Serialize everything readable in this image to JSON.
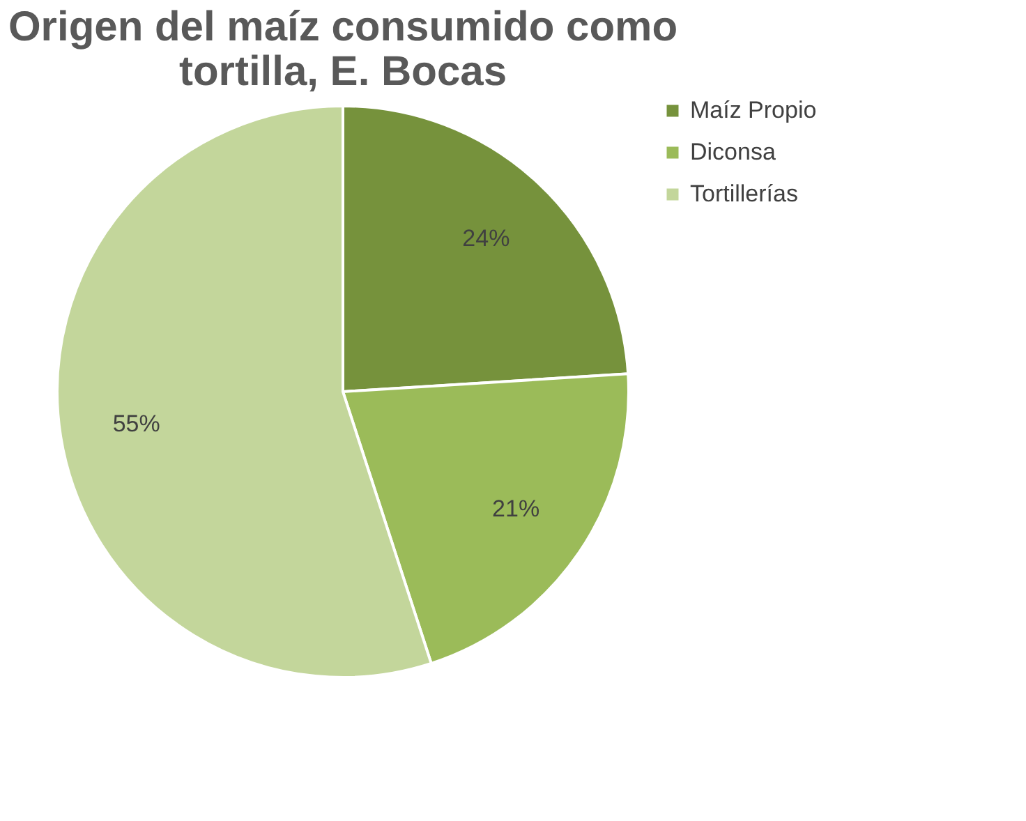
{
  "chart_data": {
    "type": "pie",
    "title": "Origen del maíz consumido como tortilla, E. Bocas",
    "categories": [
      "Maíz Propio",
      "Diconsa",
      "Tortillerías"
    ],
    "values": [
      24,
      21,
      55
    ],
    "value_labels": [
      "24%",
      "21%",
      "55%"
    ],
    "colors": [
      "#76923c",
      "#9bbb59",
      "#c3d69b"
    ],
    "legend": "right"
  }
}
